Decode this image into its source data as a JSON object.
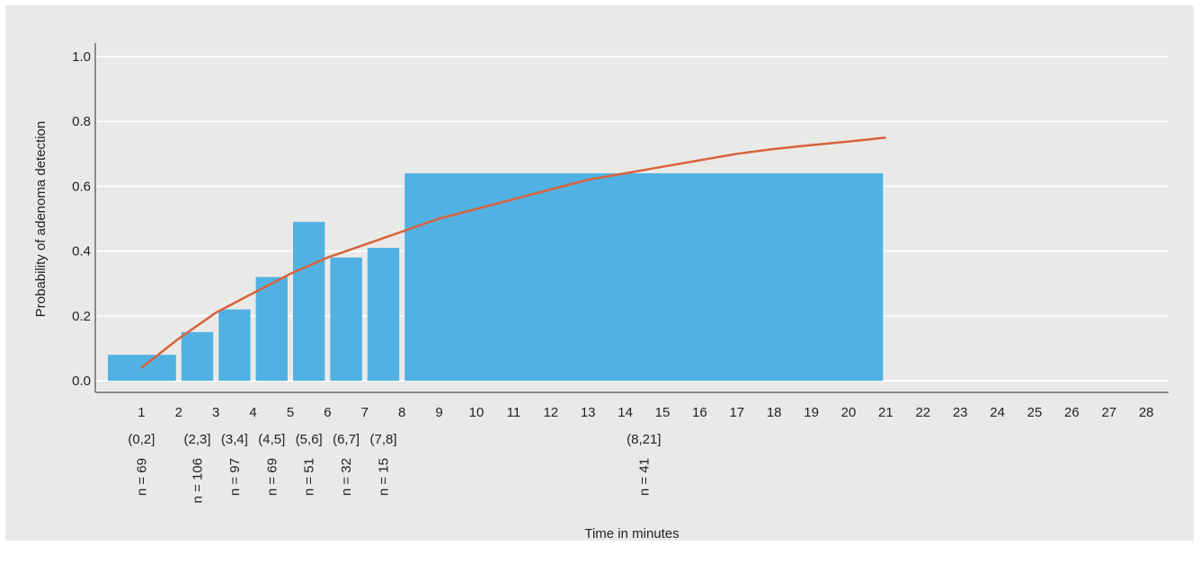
{
  "chart_data": {
    "type": "bar",
    "xlabel": "Time in minutes",
    "ylabel": "Probability of adenoma detection",
    "ylim": [
      0.0,
      1.0
    ],
    "xlim": [
      0,
      28
    ],
    "y_ticks": [
      "0.0",
      "0.2",
      "0.4",
      "0.6",
      "0.8",
      "1.0"
    ],
    "x_ticks": [
      "1",
      "2",
      "3",
      "4",
      "5",
      "6",
      "7",
      "8",
      "9",
      "10",
      "11",
      "12",
      "13",
      "14",
      "15",
      "16",
      "17",
      "18",
      "19",
      "20",
      "21",
      "22",
      "23",
      "24",
      "25",
      "26",
      "27",
      "28"
    ],
    "grid": "horizontal",
    "bar_color": "#52b1e3",
    "curve_color": "#d9623a",
    "bins": [
      {
        "interval": "(0,2]",
        "start": 0,
        "end": 2,
        "value": 0.08,
        "n_label": "n = 69"
      },
      {
        "interval": "(2,3]",
        "start": 2,
        "end": 3,
        "value": 0.15,
        "n_label": "n = 106"
      },
      {
        "interval": "(3,4]",
        "start": 3,
        "end": 4,
        "value": 0.22,
        "n_label": "n = 97"
      },
      {
        "interval": "(4,5]",
        "start": 4,
        "end": 5,
        "value": 0.32,
        "n_label": "n = 69"
      },
      {
        "interval": "(5,6]",
        "start": 5,
        "end": 6,
        "value": 0.49,
        "n_label": "n = 51"
      },
      {
        "interval": "(6,7]",
        "start": 6,
        "end": 7,
        "value": 0.38,
        "n_label": "n = 32"
      },
      {
        "interval": "(7,8]",
        "start": 7,
        "end": 8,
        "value": 0.41,
        "n_label": "n = 15"
      },
      {
        "interval": "(8,21]",
        "start": 8,
        "end": 21,
        "value": 0.64,
        "n_label": "n = 41"
      }
    ],
    "fitted_curve": {
      "x": [
        1,
        2,
        3,
        4,
        5,
        6,
        7,
        8,
        9,
        10,
        11,
        12,
        13,
        14,
        15,
        16,
        17,
        18,
        19,
        20,
        21
      ],
      "y": [
        0.04,
        0.13,
        0.21,
        0.27,
        0.33,
        0.38,
        0.42,
        0.46,
        0.5,
        0.53,
        0.56,
        0.59,
        0.62,
        0.64,
        0.66,
        0.68,
        0.7,
        0.715,
        0.727,
        0.738,
        0.75
      ]
    }
  }
}
